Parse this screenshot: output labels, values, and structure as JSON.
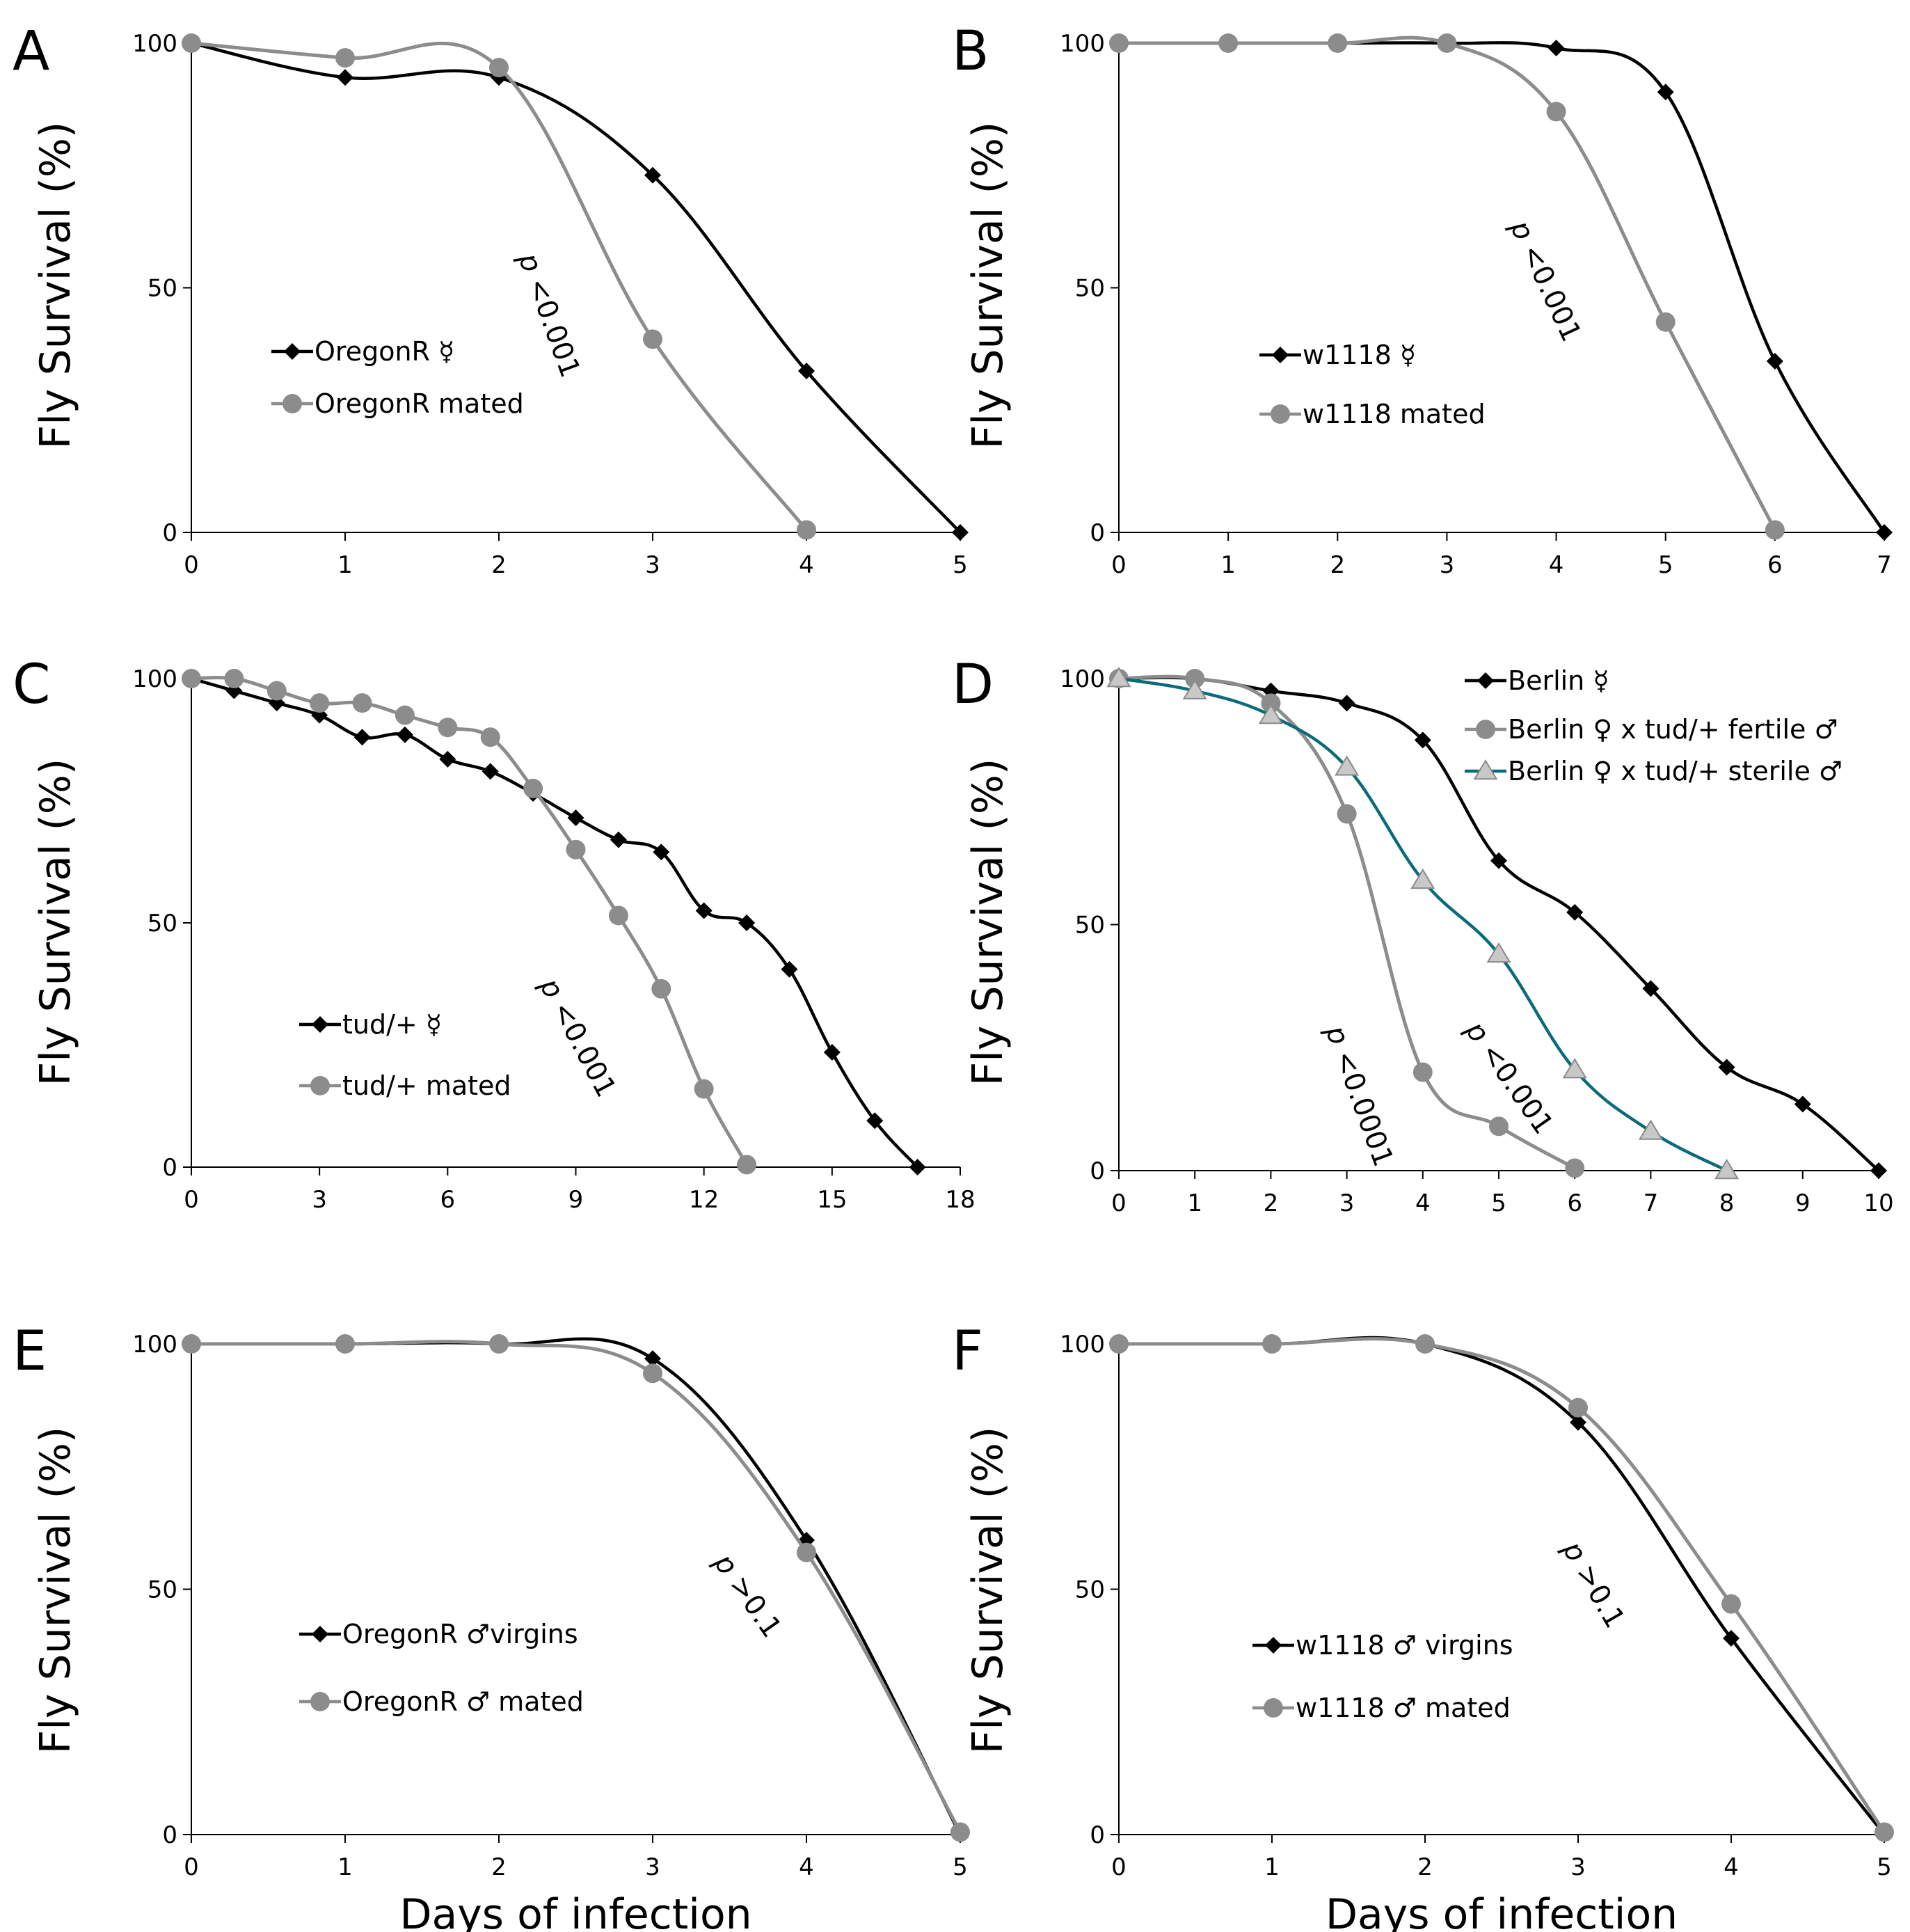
{
  "colors": {
    "black": "#000000",
    "gray": "#8c8c8c",
    "teal": "#0a6b7a",
    "triangle_fill": "#c8c8c8",
    "axis": "#000000"
  },
  "chart_data": [
    {
      "panel": "A",
      "type": "line",
      "title": "",
      "xlabel": "",
      "ylabel": "Fly Survival (%)",
      "xlim": [
        0,
        5
      ],
      "ylim": [
        0,
        100
      ],
      "xticks": [
        0,
        1,
        2,
        3,
        4,
        5
      ],
      "yticks": [
        0,
        50,
        100
      ],
      "legend_position": "center-left",
      "annotation": {
        "p": "p",
        "rest": " <0.001"
      },
      "series": [
        {
          "name": "OregonR ☿",
          "color": "black",
          "marker": "diamond",
          "x": [
            0,
            1,
            2,
            3,
            4,
            5
          ],
          "y": [
            100,
            93,
            93,
            73,
            33,
            0
          ]
        },
        {
          "name": "OregonR mated",
          "color": "gray",
          "marker": "circle",
          "x": [
            0,
            1,
            2,
            3,
            4
          ],
          "y": [
            100,
            97,
            95,
            39.5,
            0.5
          ]
        }
      ]
    },
    {
      "panel": "B",
      "type": "line",
      "title": "",
      "xlabel": "",
      "ylabel": "Fly Survival (%)",
      "xlim": [
        0,
        7
      ],
      "ylim": [
        0,
        100
      ],
      "xticks": [
        0,
        1,
        2,
        3,
        4,
        5,
        6,
        7
      ],
      "yticks": [
        0,
        50,
        100
      ],
      "legend_position": "center-left",
      "annotation": {
        "p": "p",
        "rest": " <0.001"
      },
      "series": [
        {
          "name": "w1118 ☿",
          "color": "black",
          "marker": "diamond",
          "x": [
            0,
            1,
            2,
            3,
            4,
            5,
            6,
            7
          ],
          "y": [
            100,
            100,
            100,
            100,
            99,
            90,
            35,
            0
          ]
        },
        {
          "name": "w1118 mated",
          "color": "gray",
          "marker": "circle",
          "x": [
            0,
            1,
            2,
            3,
            4,
            5,
            6
          ],
          "y": [
            100,
            100,
            100,
            100,
            86,
            43,
            0.5
          ]
        }
      ]
    },
    {
      "panel": "C",
      "type": "line",
      "title": "",
      "xlabel": "",
      "ylabel": "Fly Survival (%)",
      "xlim": [
        0,
        18
      ],
      "ylim": [
        0,
        100
      ],
      "xticks": [
        0,
        3,
        6,
        9,
        12,
        15,
        18
      ],
      "yticks": [
        0,
        50,
        100
      ],
      "legend_position": "bottom-left",
      "annotation": {
        "p": "p",
        "rest": " <0.001"
      },
      "series": [
        {
          "name": "tud/+ ☿",
          "color": "black",
          "marker": "diamond",
          "x": [
            0,
            1,
            2,
            3,
            4,
            5,
            6,
            7,
            8,
            9,
            10,
            11,
            12,
            13,
            14,
            15,
            16,
            17
          ],
          "y": [
            100,
            97.5,
            95,
            92.5,
            88,
            88.5,
            83.5,
            81,
            76.5,
            71.5,
            67,
            64.5,
            52.5,
            50,
            40.5,
            23.5,
            9.5,
            0
          ]
        },
        {
          "name": "tud/+ mated",
          "color": "gray",
          "marker": "circle",
          "x": [
            0,
            1,
            2,
            3,
            4,
            5,
            6,
            7,
            8,
            9,
            10,
            11,
            12,
            13
          ],
          "y": [
            100,
            100,
            97.5,
            95,
            95,
            92.5,
            90,
            88,
            77.5,
            65,
            51.5,
            36.5,
            16,
            0.5
          ]
        }
      ]
    },
    {
      "panel": "D",
      "type": "line",
      "title": "",
      "xlabel": "",
      "ylabel": "Fly Survival (%)",
      "xlim": [
        0,
        10
      ],
      "ylim": [
        0,
        100
      ],
      "xticks": [
        0,
        1,
        2,
        3,
        4,
        5,
        6,
        7,
        8,
        9,
        10
      ],
      "yticks": [
        0,
        50,
        100
      ],
      "legend_position": "top-right",
      "annotations": [
        {
          "p": "p",
          "rest": " <0.0001"
        },
        {
          "p": "p",
          "rest": " <0.001"
        }
      ],
      "series": [
        {
          "name": "Berlin ☿",
          "color": "black",
          "marker": "diamond",
          "x": [
            0,
            1,
            2,
            3,
            4,
            5,
            6,
            7,
            8,
            9,
            10
          ],
          "y": [
            100,
            100,
            97.5,
            95,
            87.5,
            63,
            52.5,
            37,
            21,
            13.5,
            0
          ]
        },
        {
          "name": "Berlin ♀  x tud/+ fertile ♂",
          "color": "gray",
          "marker": "circle",
          "x": [
            0,
            1,
            2,
            3,
            4,
            5,
            6
          ],
          "y": [
            100,
            100,
            95,
            72.5,
            20,
            9,
            0.5
          ]
        },
        {
          "name": "Berlin ♀  x tud/+ sterile  ♂",
          "color": "teal",
          "marker": "triangle",
          "x": [
            0,
            1,
            2,
            3,
            4,
            5,
            6,
            7,
            8
          ],
          "y": [
            100,
            97.5,
            92.5,
            82,
            59,
            44,
            20.5,
            8,
            0
          ]
        }
      ]
    },
    {
      "panel": "E",
      "type": "line",
      "title": "",
      "xlabel": "Days of infection",
      "ylabel": "Fly Survival (%)",
      "xlim": [
        0,
        5
      ],
      "ylim": [
        0,
        100
      ],
      "xticks": [
        0,
        1,
        2,
        3,
        4,
        5
      ],
      "yticks": [
        0,
        50,
        100
      ],
      "legend_position": "center-left",
      "annotation": {
        "p": "p",
        "rest": " >0.1"
      },
      "series": [
        {
          "name": "OregonR ♂virgins",
          "color": "black",
          "marker": "diamond",
          "x": [
            0,
            1,
            2,
            3,
            4,
            5
          ],
          "y": [
            100,
            100,
            100,
            97,
            60,
            0
          ]
        },
        {
          "name": "OregonR ♂ mated",
          "color": "gray",
          "marker": "circle",
          "x": [
            0,
            1,
            2,
            3,
            4,
            5
          ],
          "y": [
            100,
            100,
            100,
            94,
            57.5,
            0.5
          ]
        }
      ]
    },
    {
      "panel": "F",
      "type": "line",
      "title": "",
      "xlabel": "Days of infection",
      "ylabel": "Fly Survival (%)",
      "xlim": [
        0,
        5
      ],
      "ylim": [
        0,
        100
      ],
      "xticks": [
        0,
        1,
        2,
        3,
        4,
        5
      ],
      "yticks": [
        0,
        50,
        100
      ],
      "legend_position": "center-left",
      "annotation": {
        "p": "p",
        "rest": " >0.1"
      },
      "series": [
        {
          "name": "w1118  ♂ virgins",
          "color": "black",
          "marker": "diamond",
          "x": [
            0,
            1,
            2,
            3,
            4,
            5
          ],
          "y": [
            100,
            100,
            100,
            84,
            40,
            0
          ]
        },
        {
          "name": "w1118 ♂ mated",
          "color": "gray",
          "marker": "circle",
          "x": [
            0,
            1,
            2,
            3,
            4,
            5
          ],
          "y": [
            100,
            100,
            100,
            87,
            47,
            0.5
          ]
        }
      ]
    }
  ]
}
